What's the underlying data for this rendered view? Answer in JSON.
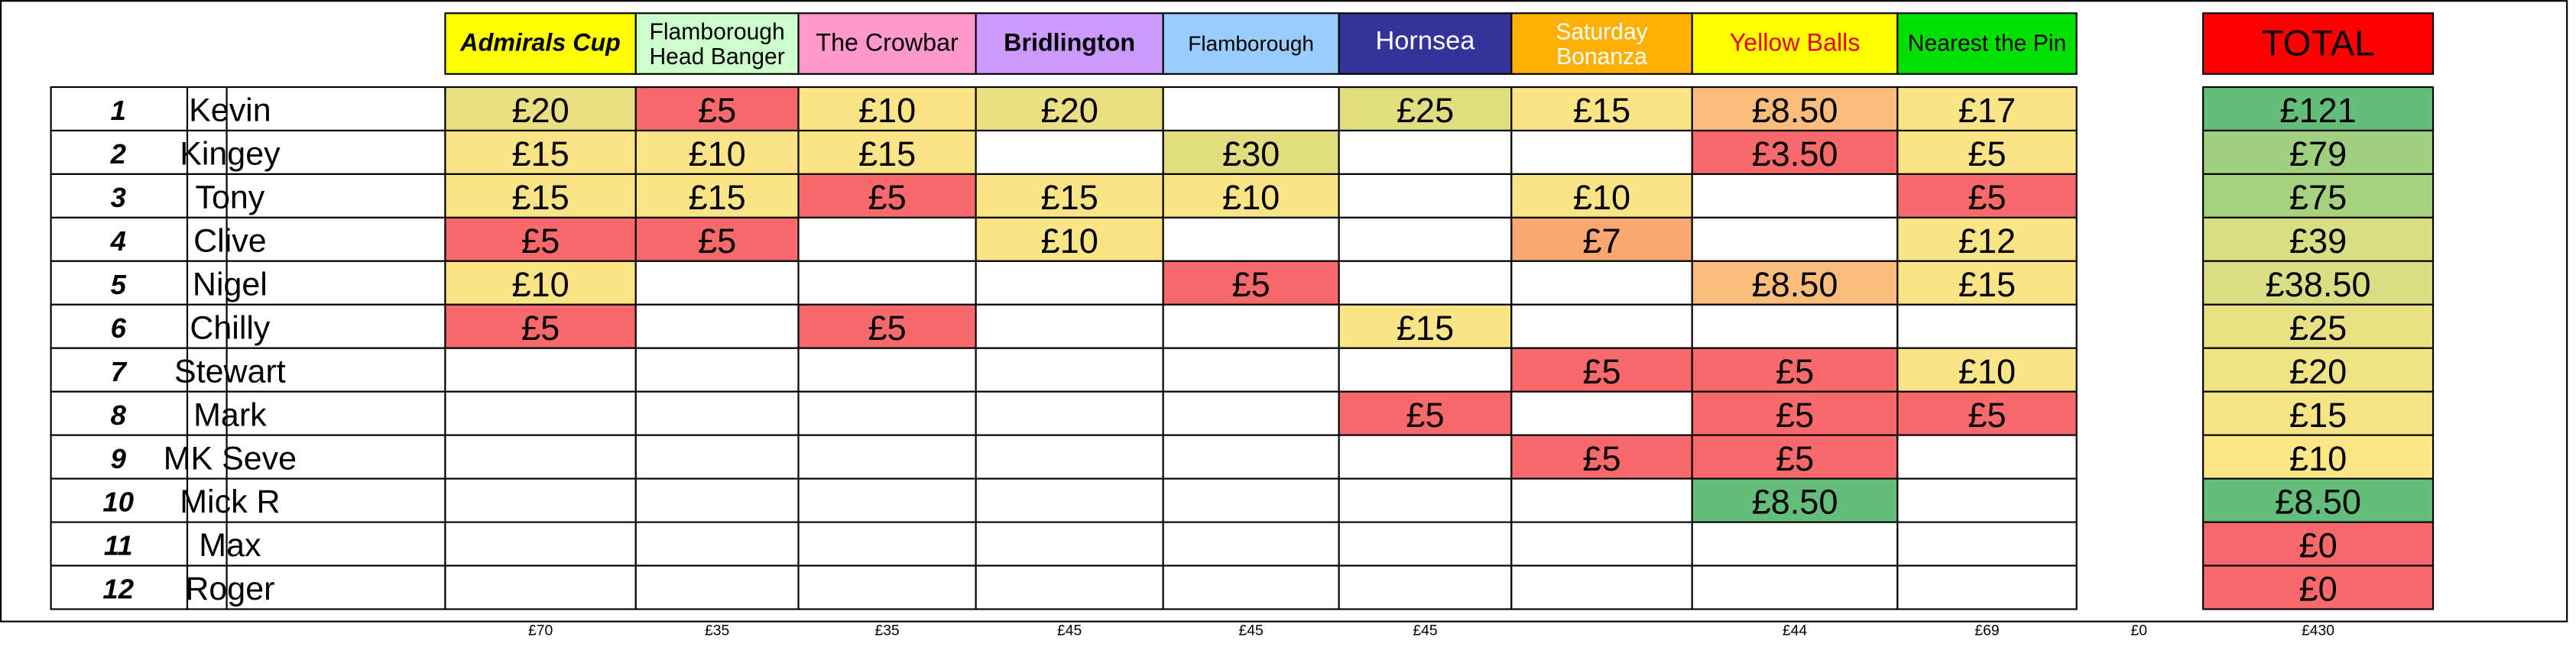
{
  "headers": [
    "Admirals Cup",
    "Flamborough Head Banger",
    "The Crowbar",
    "Bridlington",
    "Flamborough",
    "Hornsea",
    "Saturday Bonanza",
    "Yellow Balls",
    "Nearest the Pin"
  ],
  "total_header": "TOTAL",
  "rows": [
    {
      "rank": "1",
      "name": "Kevin",
      "cells": [
        "£20",
        "£5",
        "£10",
        "£20",
        null,
        "£25",
        "£15",
        "£8.50",
        "£17"
      ],
      "total": "£121"
    },
    {
      "rank": "2",
      "name": "Kingey",
      "cells": [
        "£15",
        "£10",
        "£15",
        null,
        "£30",
        null,
        null,
        "£3.50",
        "£5"
      ],
      "total": "£79"
    },
    {
      "rank": "3",
      "name": "Tony",
      "cells": [
        "£15",
        "£15",
        "£5",
        "£15",
        "£10",
        null,
        "£10",
        null,
        "£5"
      ],
      "total": "£75"
    },
    {
      "rank": "4",
      "name": "Clive",
      "cells": [
        "£5",
        "£5",
        null,
        "£10",
        null,
        null,
        "£7",
        null,
        "£12"
      ],
      "total": "£39"
    },
    {
      "rank": "5",
      "name": "Nigel",
      "cells": [
        "£10",
        null,
        null,
        null,
        "£5",
        null,
        null,
        "£8.50",
        "£15"
      ],
      "total": "£38.50"
    },
    {
      "rank": "6",
      "name": "Chilly",
      "cells": [
        "£5",
        null,
        "£5",
        null,
        null,
        "£15",
        null,
        null,
        null
      ],
      "total": "£25"
    },
    {
      "rank": "7",
      "name": "Stewart",
      "cells": [
        null,
        null,
        null,
        null,
        null,
        null,
        "£5",
        "£5",
        "£10"
      ],
      "total": "£20"
    },
    {
      "rank": "8",
      "name": "Mark",
      "cells": [
        null,
        null,
        null,
        null,
        null,
        "£5",
        null,
        "£5",
        "£5"
      ],
      "total": "£15"
    },
    {
      "rank": "9",
      "name": "MK Seve",
      "cells": [
        null,
        null,
        null,
        null,
        null,
        null,
        "£5",
        "£5",
        null
      ],
      "total": "£10"
    },
    {
      "rank": "10",
      "name": "Mick R",
      "cells": [
        null,
        null,
        null,
        null,
        null,
        null,
        null,
        "£8.50",
        null
      ],
      "total": "£8.50"
    },
    {
      "rank": "11",
      "name": "Max",
      "cells": [
        null,
        null,
        null,
        null,
        null,
        null,
        null,
        null,
        null
      ],
      "total": "£0"
    },
    {
      "rank": "12",
      "name": "Roger",
      "cells": [
        null,
        null,
        null,
        null,
        null,
        null,
        null,
        null,
        null
      ],
      "total": "£0"
    }
  ],
  "column_totals": [
    "£70",
    "£35",
    "£35",
    "£45",
    "£45",
    "£45",
    null,
    "£44",
    "£69"
  ],
  "gap_total": "£0",
  "grand_total": "£430"
}
